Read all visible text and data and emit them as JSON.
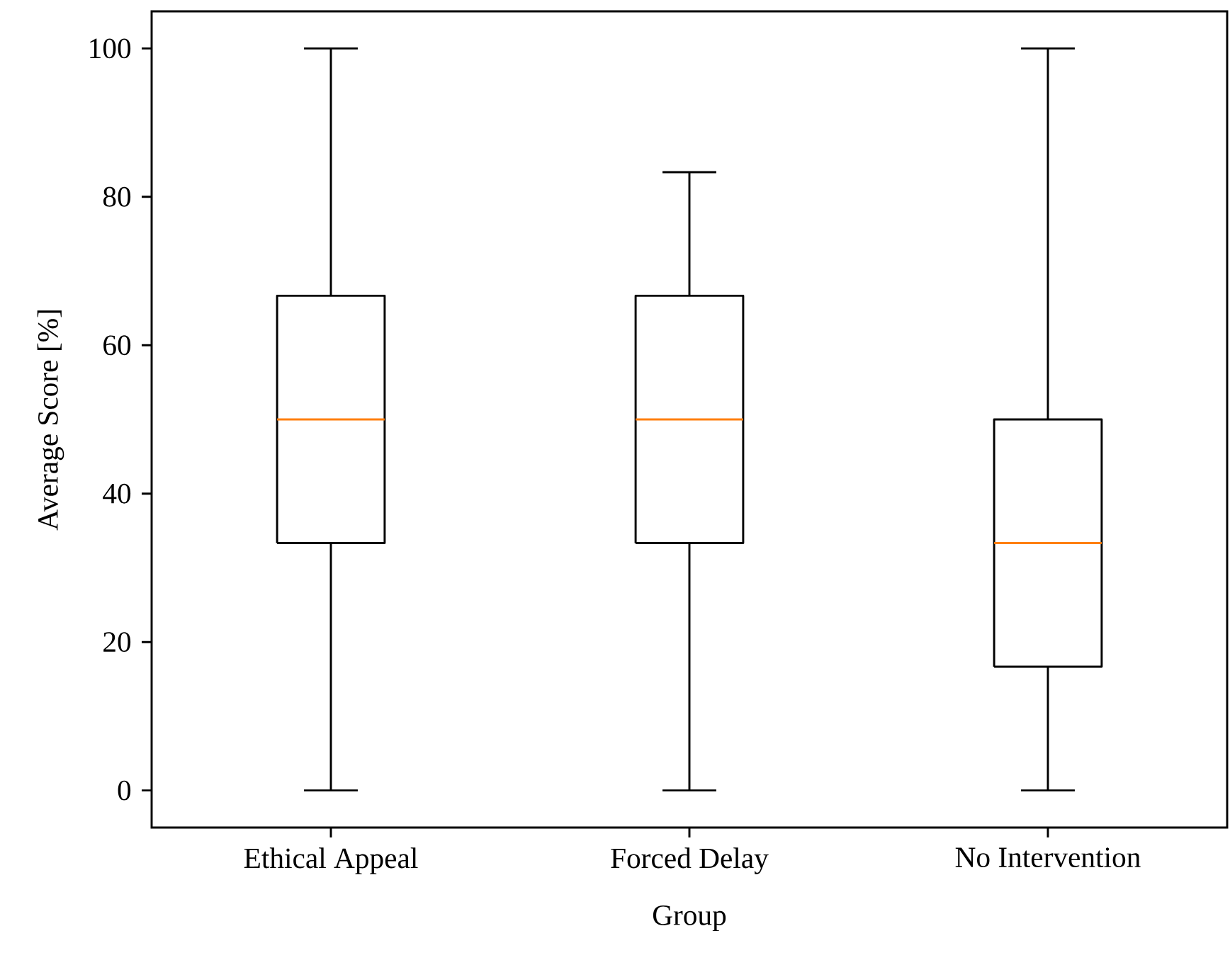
{
  "chart_data": {
    "type": "box",
    "xlabel": "Group",
    "ylabel": "Average Score [%]",
    "categories": [
      "Ethical Appeal",
      "Forced Delay",
      "No Intervention"
    ],
    "boxes": [
      {
        "low": 0,
        "q1": 33.33,
        "median": 50,
        "q3": 66.67,
        "high": 100
      },
      {
        "low": 0,
        "q1": 33.33,
        "median": 50,
        "q3": 66.67,
        "high": 83.33
      },
      {
        "low": 0,
        "q1": 16.67,
        "median": 33.33,
        "q3": 50,
        "high": 100
      }
    ],
    "ylim": [
      -5,
      105
    ],
    "yticks": [
      0,
      20,
      40,
      60,
      80,
      100
    ]
  }
}
